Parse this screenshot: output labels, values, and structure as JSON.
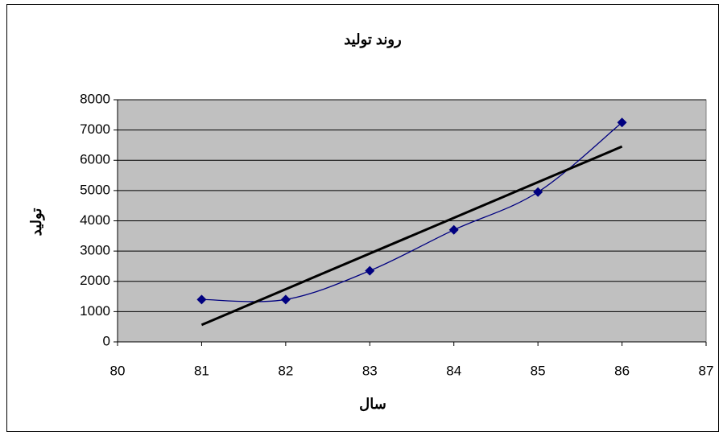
{
  "chart_data": {
    "type": "scatter",
    "title": "روند تولید",
    "x_label": "سال",
    "y_label": "تولید",
    "x": [
      81,
      82,
      83,
      84,
      85,
      86
    ],
    "series": [
      {
        "color": "#000080",
        "values": [
          1400,
          1400,
          2350,
          3700,
          4950,
          7250
        ]
      }
    ],
    "marker": "diamond",
    "smooth": true,
    "trendline": {
      "type": "linear",
      "color": "#000000"
    },
    "xlim": [
      80,
      87
    ],
    "xticks": [
      80,
      81,
      82,
      83,
      84,
      85,
      86,
      87
    ],
    "ylim": [
      0,
      8000
    ],
    "yticks": [
      0,
      1000,
      2000,
      3000,
      4000,
      5000,
      6000,
      7000,
      8000
    ],
    "grid": true,
    "plot_background": "#c0c0c0"
  }
}
